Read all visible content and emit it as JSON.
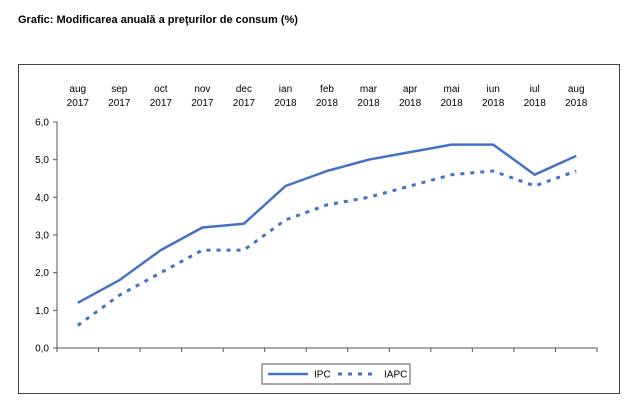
{
  "title": "Grafic: Modificarea anuală a preţurilor de consum (%)",
  "chart_data": {
    "type": "line",
    "categories": [
      [
        "aug",
        "2017"
      ],
      [
        "sep",
        "2017"
      ],
      [
        "oct",
        "2017"
      ],
      [
        "nov",
        "2017"
      ],
      [
        "dec",
        "2017"
      ],
      [
        "ian",
        "2018"
      ],
      [
        "feb",
        "2018"
      ],
      [
        "mar",
        "2018"
      ],
      [
        "apr",
        "2018"
      ],
      [
        "mai",
        "2018"
      ],
      [
        "iun",
        "2018"
      ],
      [
        "iul",
        "2018"
      ],
      [
        "aug",
        "2018"
      ]
    ],
    "series": [
      {
        "name": "IPC",
        "style": "solid",
        "color": "#4472C4",
        "values": [
          1.2,
          1.8,
          2.6,
          3.2,
          3.3,
          4.3,
          4.7,
          5.0,
          5.2,
          5.4,
          5.4,
          4.6,
          5.1
        ]
      },
      {
        "name": "IAPC",
        "style": "dashed",
        "color": "#4472C4",
        "values": [
          0.6,
          1.4,
          2.0,
          2.6,
          2.6,
          3.4,
          3.8,
          4.0,
          4.3,
          4.6,
          4.7,
          4.3,
          4.7
        ]
      }
    ],
    "ylim": [
      0,
      6
    ],
    "yticks": [
      "0,0",
      "1,0",
      "2,0",
      "3,0",
      "4,0",
      "5,0",
      "6,0"
    ],
    "x_axis_position": "top",
    "legend_position": "bottom-center",
    "grid": false
  }
}
